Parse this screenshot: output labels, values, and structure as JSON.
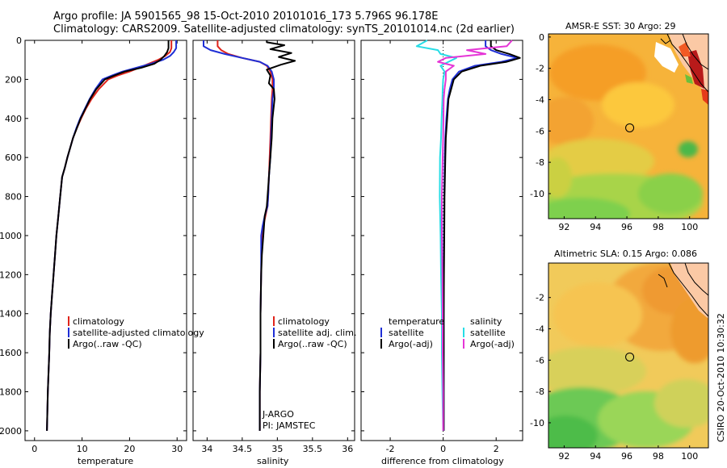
{
  "titles": {
    "line1": "Argo profile: JA 5901565_98 15-Oct-2010 20101016_173 5.796S 96.178E",
    "line2": "Climatology: CARS2009. Satellite-adjusted climatology: synTS_20101014.nc (2d earlier)"
  },
  "footer": "CSIRO 20-Oct-2010 10:30:32",
  "colors": {
    "climatology": "#e0241b",
    "satellite": "#1f2fd6",
    "argo": "#000000",
    "sat_cyan": "#27dde6",
    "argo_magenta": "#e536d6"
  },
  "chart_data": [
    {
      "type": "line",
      "id": "temperature",
      "xlabel": "temperature",
      "ylabel": "",
      "xlim": [
        -2,
        32
      ],
      "ylim": [
        2050,
        0
      ],
      "xticks": [
        0,
        10,
        20,
        30
      ],
      "xtick_labels": [
        "0",
        "10",
        "20",
        "30"
      ],
      "yticks": [
        0,
        200,
        400,
        600,
        800,
        1000,
        1200,
        1400,
        1600,
        1800,
        2000
      ],
      "ytick_labels": [
        "0",
        "200",
        "400",
        "600",
        "800",
        "1000",
        "1200",
        "1400",
        "1600",
        "1800",
        "2000"
      ],
      "legend": [
        "climatology",
        "satellite-adjusted climatology",
        "Argo(..raw -QC)"
      ],
      "series": [
        {
          "name": "climatology",
          "color": "#e0241b",
          "x": [
            28.8,
            28.8,
            28.5,
            27.5,
            26,
            24,
            22,
            20,
            17.5,
            15.5,
            13.5,
            12,
            10.8,
            9.8,
            8.9,
            8.1,
            7.5,
            6.9,
            6.4,
            5.8,
            5.4,
            5,
            4.6,
            4.3,
            4,
            3.7,
            3.4,
            3.2,
            3.1,
            2.8,
            2.6
          ],
          "y": [
            0,
            40,
            60,
            80,
            100,
            120,
            140,
            160,
            180,
            200,
            250,
            300,
            350,
            400,
            450,
            500,
            550,
            600,
            650,
            700,
            800,
            900,
            1000,
            1100,
            1200,
            1300,
            1400,
            1500,
            1600,
            1800,
            2000
          ]
        },
        {
          "name": "satellite-adjusted climatology",
          "color": "#1f2fd6",
          "x": [
            29.8,
            29.8,
            29.3,
            28.5,
            27,
            24.5,
            21.5,
            18.5,
            16.3,
            14.3,
            12.8,
            11.6,
            10.6,
            9.6,
            8.8,
            8.1,
            7.5,
            6.9,
            6.4,
            5.8,
            5.4,
            5,
            4.6,
            4.3,
            4,
            3.7,
            3.4,
            3.2,
            3.1,
            2.8,
            2.6
          ],
          "y": [
            0,
            40,
            60,
            80,
            100,
            120,
            140,
            160,
            180,
            200,
            250,
            300,
            350,
            400,
            450,
            500,
            550,
            600,
            650,
            700,
            800,
            900,
            1000,
            1100,
            1200,
            1300,
            1400,
            1500,
            1600,
            1800,
            2000
          ]
        },
        {
          "name": "Argo(..raw -QC)",
          "color": "#000000",
          "x": [
            28.2,
            28.2,
            27.9,
            27.3,
            26.5,
            25.2,
            22.5,
            19,
            16.8,
            14.8,
            13,
            11.7,
            10.7,
            9.7,
            8.9,
            8.1,
            7.5,
            6.9,
            6.4,
            5.8,
            5.4,
            5,
            4.6,
            4.3,
            4,
            3.7,
            3.4,
            3.2,
            3.1,
            2.8,
            2.6
          ],
          "y": [
            0,
            40,
            60,
            80,
            100,
            120,
            140,
            160,
            180,
            200,
            250,
            300,
            350,
            400,
            450,
            500,
            550,
            600,
            650,
            700,
            800,
            900,
            1000,
            1100,
            1200,
            1300,
            1400,
            1500,
            1600,
            1800,
            2000
          ]
        }
      ]
    },
    {
      "type": "line",
      "id": "salinity",
      "xlabel": "salinity",
      "ylabel": "",
      "xlim": [
        33.8,
        36.1
      ],
      "ylim": [
        2050,
        0
      ],
      "xticks": [
        34,
        34.5,
        35,
        35.5,
        36
      ],
      "xtick_labels": [
        "34",
        "34.5",
        "35",
        "35.5",
        "36"
      ],
      "legend": [
        "climatology",
        "satellite adj. clim.",
        "Argo(..raw -QC)"
      ],
      "annotations": [
        "J-ARGO",
        "PI: JAMSTEC"
      ],
      "series": [
        {
          "name": "climatology",
          "color": "#e0241b",
          "x": [
            34.15,
            34.15,
            34.2,
            34.3,
            34.5,
            34.75,
            34.85,
            34.9,
            34.93,
            34.93,
            34.92,
            34.91,
            34.9,
            34.89,
            34.88,
            34.87,
            34.86,
            34.83,
            34.8,
            34.78,
            34.77,
            34.76,
            34.76,
            34.75,
            34.75,
            34.75
          ],
          "y": [
            0,
            30,
            50,
            70,
            90,
            110,
            130,
            160,
            200,
            250,
            300,
            400,
            500,
            600,
            700,
            800,
            850,
            900,
            950,
            1000,
            1200,
            1400,
            1600,
            1800,
            1900,
            2000
          ]
        },
        {
          "name": "satellite adj. clim.",
          "color": "#1f2fd6",
          "x": [
            33.95,
            33.95,
            34.05,
            34.25,
            34.5,
            34.75,
            34.86,
            34.92,
            34.95,
            34.95,
            34.93,
            34.92,
            34.91,
            34.9,
            34.88,
            34.87,
            34.86,
            34.82,
            34.79,
            34.77,
            34.77,
            34.76,
            34.76,
            34.75,
            34.75,
            34.75
          ],
          "y": [
            0,
            30,
            50,
            70,
            90,
            110,
            130,
            160,
            200,
            250,
            300,
            400,
            500,
            600,
            700,
            800,
            850,
            900,
            950,
            1000,
            1200,
            1400,
            1600,
            1800,
            1900,
            2000
          ]
        },
        {
          "name": "Argo(..raw -QC)",
          "color": "#000000",
          "x": [
            34.85,
            34.85,
            35.1,
            34.9,
            35.2,
            35.02,
            35.25,
            35.05,
            34.85,
            34.9,
            34.88,
            34.95,
            34.96,
            34.93,
            34.92,
            34.9,
            34.88,
            34.86,
            34.85,
            34.82,
            34.8,
            34.78,
            34.77,
            34.76,
            34.76,
            34.75,
            34.75,
            34.75
          ],
          "y": [
            0,
            10,
            25,
            45,
            65,
            85,
            105,
            125,
            150,
            180,
            220,
            250,
            300,
            400,
            500,
            600,
            700,
            800,
            850,
            900,
            1000,
            1100,
            1200,
            1400,
            1600,
            1800,
            1900,
            2000
          ]
        }
      ]
    },
    {
      "type": "line",
      "id": "difference",
      "xlabel": "difference from climatology",
      "ylabel": "",
      "xlim": [
        -3.1,
        3.0
      ],
      "ylim": [
        2050,
        0
      ],
      "xticks": [
        -2,
        0,
        2
      ],
      "xtick_labels": [
        "-2",
        "0",
        "2"
      ],
      "legend_left_title": "temperature",
      "legend_right_title": "salinity",
      "legend_left": [
        "satellite",
        "Argo(-adj)"
      ],
      "legend_right": [
        "satellite",
        "Argo(-adj)"
      ],
      "series": [
        {
          "name": "temperature satellite",
          "color": "#1f2fd6",
          "x": [
            1.6,
            1.6,
            1.8,
            2.2,
            2.8,
            2.2,
            1.2,
            0.6,
            0.35,
            0.25,
            0.18,
            0.12,
            0.08,
            0.06,
            0.04,
            0.03,
            0.02,
            0.02,
            0.02,
            0.02,
            0.02
          ],
          "y": [
            0,
            30,
            50,
            70,
            90,
            110,
            130,
            160,
            200,
            250,
            300,
            400,
            500,
            600,
            800,
            1000,
            1200,
            1400,
            1600,
            1800,
            2000
          ]
        },
        {
          "name": "temperature Argo(-adj)",
          "color": "#000000",
          "x": [
            1.8,
            1.8,
            2.0,
            2.5,
            2.9,
            2.4,
            1.4,
            0.7,
            0.4,
            0.3,
            0.2,
            0.15,
            0.1,
            0.08,
            0.05,
            0.04,
            0.03,
            0.02,
            0.02,
            0.02,
            0.02
          ],
          "y": [
            0,
            30,
            50,
            70,
            90,
            110,
            130,
            160,
            200,
            250,
            300,
            400,
            500,
            600,
            800,
            1000,
            1200,
            1400,
            1600,
            1800,
            2000
          ]
        },
        {
          "name": "salinity satellite",
          "color": "#27dde6",
          "x": [
            -0.6,
            -1.0,
            -0.2,
            -0.1,
            0.5,
            0.2,
            -0.1,
            0.05,
            0,
            -0.02,
            -0.03,
            -0.06,
            -0.08,
            -0.12,
            -0.13,
            -0.1,
            -0.08,
            -0.05,
            -0.05,
            -0.03,
            0
          ],
          "y": [
            0,
            30,
            50,
            70,
            90,
            110,
            130,
            160,
            200,
            250,
            300,
            400,
            500,
            600,
            800,
            1000,
            1200,
            1400,
            1600,
            1800,
            2000
          ]
        },
        {
          "name": "salinity Argo(-adj)",
          "color": "#e536d6",
          "x": [
            2.6,
            2.4,
            0.9,
            1.6,
            0.1,
            -0.2,
            0.4,
            0.1,
            0.1,
            0.05,
            0.02,
            0.01,
            0,
            -0.02,
            -0.05,
            -0.05,
            -0.03,
            -0.02,
            -0.02,
            0,
            0
          ],
          "y": [
            0,
            30,
            50,
            70,
            90,
            110,
            130,
            160,
            200,
            250,
            300,
            400,
            500,
            600,
            800,
            1000,
            1200,
            1400,
            1600,
            1800,
            2000
          ]
        }
      ]
    },
    {
      "type": "heatmap",
      "id": "sst_map",
      "title": "AMSR-E SST: 30 Argo: 29",
      "xlim": [
        91,
        101.2
      ],
      "ylim": [
        -11.6,
        0.2
      ],
      "xticks": [
        92,
        94,
        96,
        98,
        100
      ],
      "xtick_labels": [
        "92",
        "94",
        "96",
        "98",
        "100"
      ],
      "yticks": [
        0,
        -2,
        -4,
        -6,
        -8,
        -10
      ],
      "ytick_labels": [
        "0",
        "-2",
        "-4",
        "-6",
        "-8",
        "-10"
      ],
      "marker": {
        "x": 96.18,
        "y": -5.8
      }
    },
    {
      "type": "heatmap",
      "id": "sla_map",
      "title": "Altimetric SLA: 0.15 Argo: 0.086",
      "xlim": [
        91,
        101.2
      ],
      "ylim": [
        -11.6,
        0.2
      ],
      "xticks": [
        92,
        94,
        96,
        98,
        100
      ],
      "xtick_labels": [
        "92",
        "94",
        "96",
        "98",
        "100"
      ],
      "yticks": [
        -2,
        -4,
        -6,
        -8,
        -10
      ],
      "ytick_labels": [
        "-2",
        "-4",
        "-6",
        "-8",
        "-10"
      ],
      "marker": {
        "x": 96.18,
        "y": -5.8
      }
    }
  ]
}
